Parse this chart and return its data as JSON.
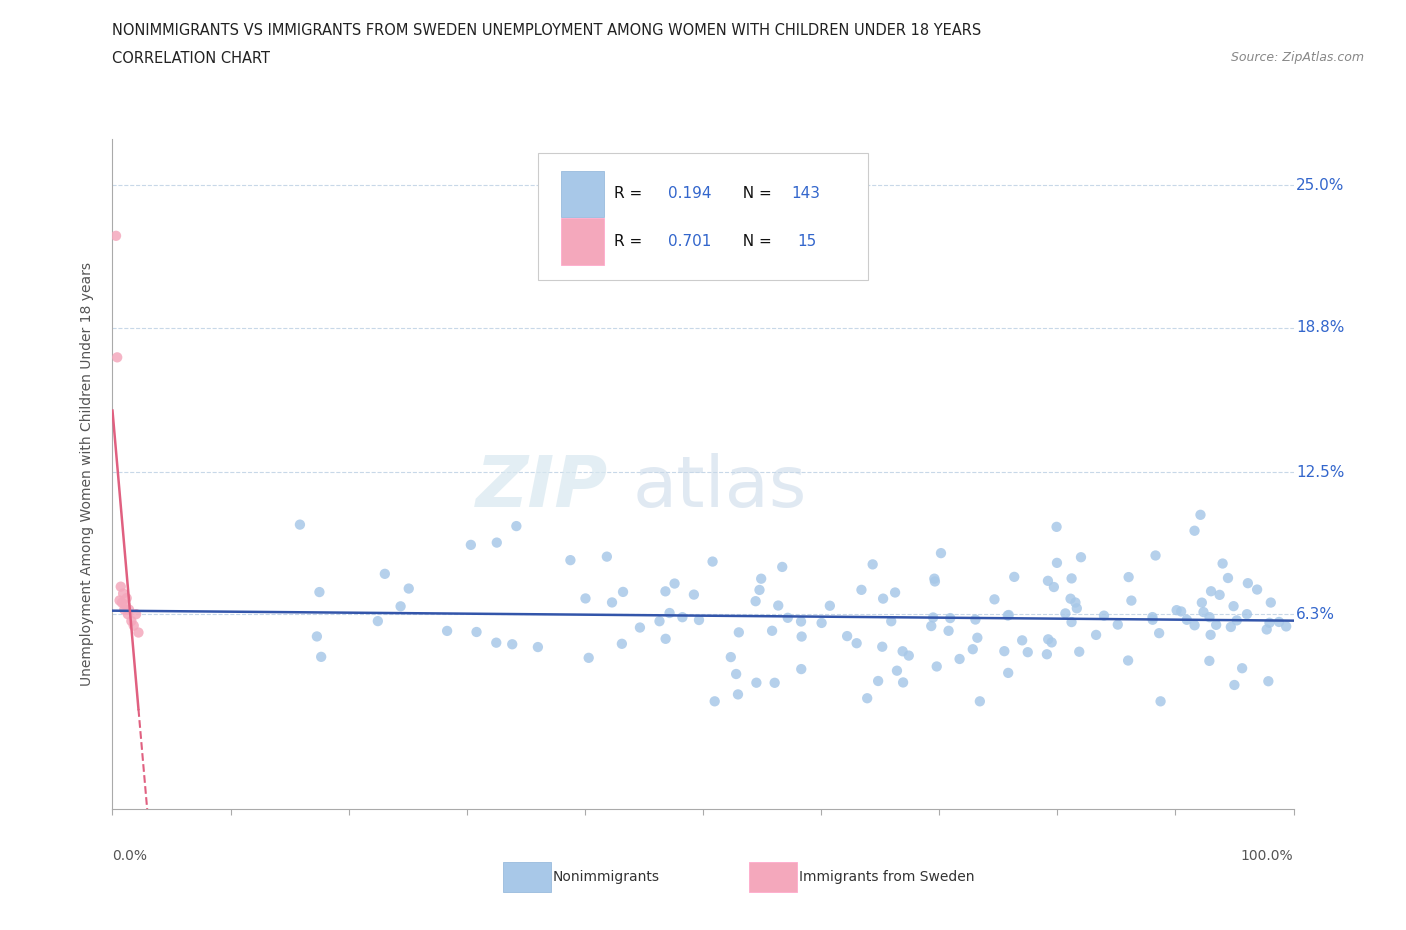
{
  "title_line1": "NONIMMIGRANTS VS IMMIGRANTS FROM SWEDEN UNEMPLOYMENT AMONG WOMEN WITH CHILDREN UNDER 18 YEARS",
  "title_line2": "CORRELATION CHART",
  "source_text": "Source: ZipAtlas.com",
  "xlabel_bottom_left": "0.0%",
  "xlabel_bottom_right": "100.0%",
  "ylabel": "Unemployment Among Women with Children Under 18 years",
  "yticks": [
    0.063,
    0.125,
    0.188,
    0.25
  ],
  "ytick_labels": [
    "6.3%",
    "12.5%",
    "18.8%",
    "25.0%"
  ],
  "xlim": [
    0.0,
    1.0
  ],
  "ylim": [
    -0.022,
    0.27
  ],
  "blue_R": 0.194,
  "blue_N": 143,
  "pink_R": 0.701,
  "pink_N": 15,
  "blue_color": "#A8C8E8",
  "pink_color": "#F4A8BC",
  "blue_line_color": "#3355AA",
  "pink_line_color": "#E06080",
  "legend_label_blue": "Nonimmigrants",
  "legend_label_pink": "Immigrants from Sweden",
  "watermark_zip": "ZIP",
  "watermark_atlas": "atlas"
}
